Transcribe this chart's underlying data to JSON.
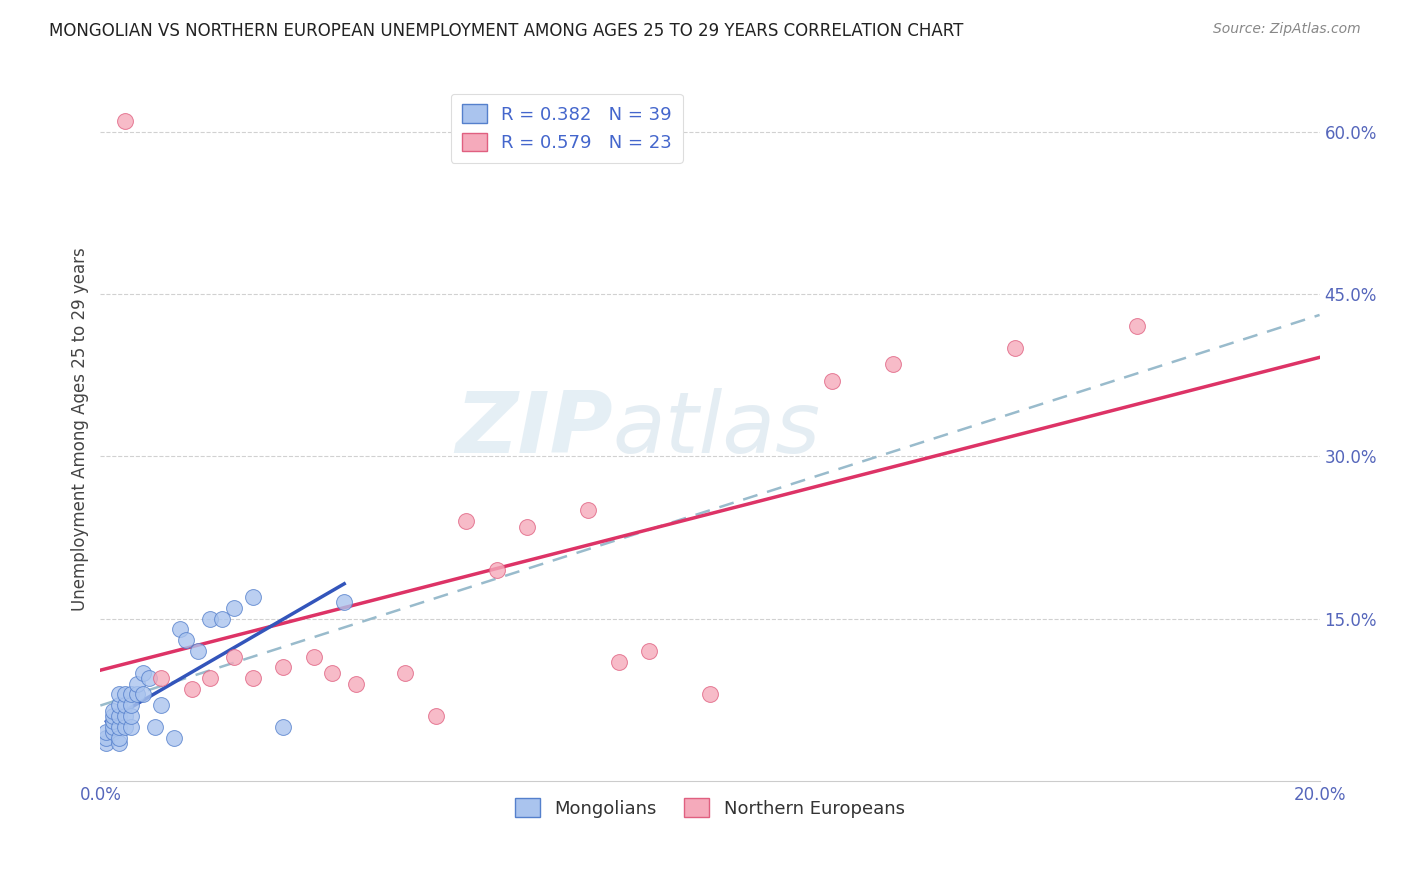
{
  "title": "MONGOLIAN VS NORTHERN EUROPEAN UNEMPLOYMENT AMONG AGES 25 TO 29 YEARS CORRELATION CHART",
  "source": "Source: ZipAtlas.com",
  "ylabel": "Unemployment Among Ages 25 to 29 years",
  "xlim": [
    0.0,
    0.2
  ],
  "ylim": [
    0.0,
    0.65
  ],
  "mongolian_x": [
    0.001,
    0.001,
    0.001,
    0.002,
    0.002,
    0.002,
    0.002,
    0.002,
    0.003,
    0.003,
    0.003,
    0.003,
    0.003,
    0.003,
    0.004,
    0.004,
    0.004,
    0.004,
    0.005,
    0.005,
    0.005,
    0.005,
    0.006,
    0.006,
    0.007,
    0.007,
    0.008,
    0.009,
    0.01,
    0.012,
    0.013,
    0.014,
    0.016,
    0.018,
    0.02,
    0.022,
    0.025,
    0.03,
    0.04
  ],
  "mongolian_y": [
    0.035,
    0.04,
    0.045,
    0.045,
    0.05,
    0.055,
    0.06,
    0.065,
    0.035,
    0.04,
    0.05,
    0.06,
    0.07,
    0.08,
    0.05,
    0.06,
    0.07,
    0.08,
    0.05,
    0.06,
    0.07,
    0.08,
    0.08,
    0.09,
    0.08,
    0.1,
    0.095,
    0.05,
    0.07,
    0.04,
    0.14,
    0.13,
    0.12,
    0.15,
    0.15,
    0.16,
    0.17,
    0.05,
    0.165
  ],
  "northern_x": [
    0.004,
    0.01,
    0.015,
    0.018,
    0.022,
    0.025,
    0.03,
    0.035,
    0.038,
    0.042,
    0.05,
    0.055,
    0.06,
    0.065,
    0.07,
    0.08,
    0.085,
    0.09,
    0.1,
    0.12,
    0.13,
    0.15,
    0.17
  ],
  "northern_y": [
    0.61,
    0.095,
    0.085,
    0.095,
    0.115,
    0.095,
    0.105,
    0.115,
    0.1,
    0.09,
    0.1,
    0.06,
    0.24,
    0.195,
    0.235,
    0.25,
    0.11,
    0.12,
    0.08,
    0.37,
    0.385,
    0.4,
    0.42
  ],
  "mongolian_color": "#aac4ee",
  "northern_color": "#f5aabb",
  "mongolian_edge": "#5580cc",
  "northern_edge": "#e06080",
  "mongolian_line_color": "#3355bb",
  "northern_line_color": "#dd3366",
  "overall_line_color": "#99bbcc",
  "R_mongolian": 0.382,
  "N_mongolian": 39,
  "R_northern": 0.579,
  "N_northern": 23,
  "legend_mongolians": "Mongolians",
  "legend_northern": "Northern Europeans",
  "watermark_zip": "ZIP",
  "watermark_atlas": "atlas",
  "background_color": "#ffffff",
  "grid_color": "#cccccc"
}
